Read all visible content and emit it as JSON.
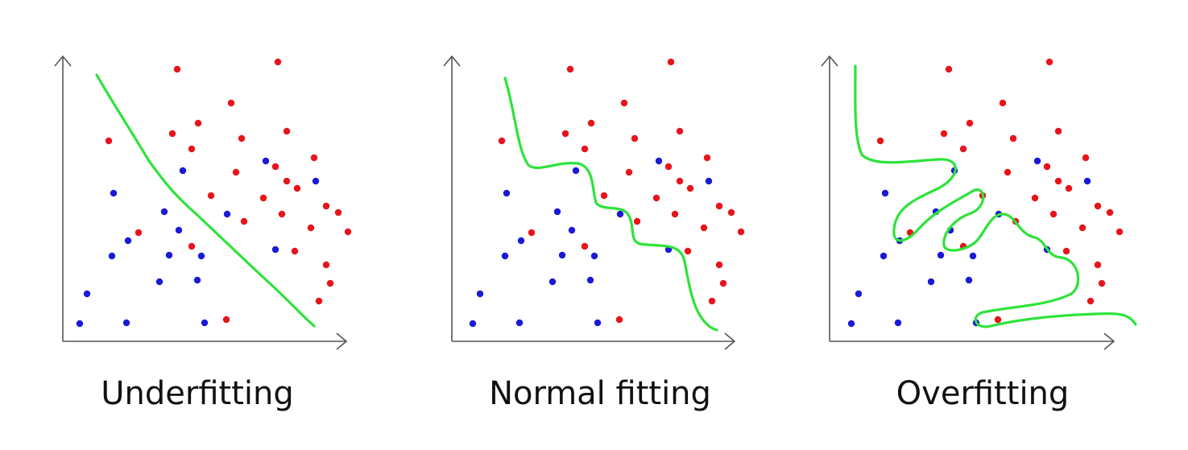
{
  "panels": [
    {
      "id": "underfitting",
      "caption": "Underfitting"
    },
    {
      "id": "normal",
      "caption": "Normal fitting"
    },
    {
      "id": "overfitting",
      "caption": "Overfitting"
    }
  ],
  "colors": {
    "class_a": "#e8141b",
    "class_b": "#1a1ad6",
    "boundary": "#2de33a",
    "axis": "#555555"
  },
  "icons": [
    "axis-arrow-up",
    "axis-arrow-right"
  ]
}
